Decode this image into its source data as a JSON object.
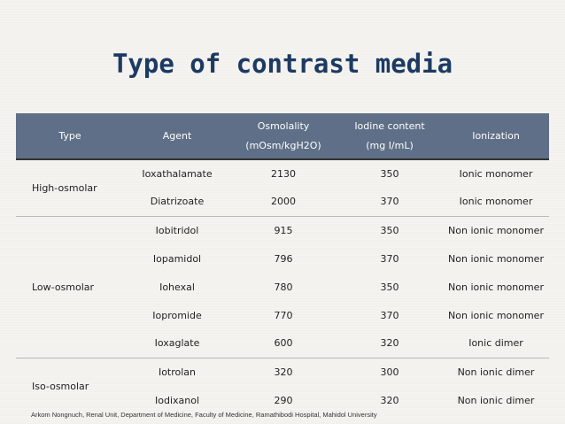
{
  "title": "Type of contrast media",
  "table": {
    "headers": {
      "type": "Type",
      "agent": "Agent",
      "osmolality_line1": "Osmolality",
      "osmolality_line2": "(mOsm/kgH2O)",
      "iodine_line1": "Iodine content",
      "iodine_line2": "(mg I/mL)",
      "ionization": "Ionization"
    },
    "groups": [
      {
        "type": "High-osmolar",
        "rows": [
          {
            "agent": "Ioxathalamate",
            "osmolality": "2130",
            "iodine": "350",
            "ionization": "Ionic monomer"
          },
          {
            "agent": "Diatrizoate",
            "osmolality": "2000",
            "iodine": "370",
            "ionization": "Ionic monomer"
          }
        ]
      },
      {
        "type": "Low-osmolar",
        "rows": [
          {
            "agent": "Iobitridol",
            "osmolality": "915",
            "iodine": "350",
            "ionization": "Non ionic monomer"
          },
          {
            "agent": "Iopamidol",
            "osmolality": "796",
            "iodine": "370",
            "ionization": "Non ionic monomer"
          },
          {
            "agent": "Iohexal",
            "osmolality": "780",
            "iodine": "350",
            "ionization": "Non ionic monomer"
          },
          {
            "agent": "Iopromide",
            "osmolality": "770",
            "iodine": "370",
            "ionization": "Non ionic monomer"
          },
          {
            "agent": "Ioxaglate",
            "osmolality": "600",
            "iodine": "320",
            "ionization": "Ionic dimer"
          }
        ]
      },
      {
        "type": "Iso-osmolar",
        "rows": [
          {
            "agent": "Iotrolan",
            "osmolality": "320",
            "iodine": "300",
            "ionization": "Non ionic dimer"
          },
          {
            "agent": "Iodixanol",
            "osmolality": "290",
            "iodine": "320",
            "ionization": "Non ionic dimer"
          }
        ]
      }
    ]
  },
  "footer": "Arkom Nongnuch, Renal Unit, Department of Medicine, Faculty of Medicine, Ramathibodi Hospital, Mahidol University",
  "colors": {
    "title": "#1d3a63",
    "header_bg": "#5e6f87",
    "background": "#f4f3ef"
  }
}
